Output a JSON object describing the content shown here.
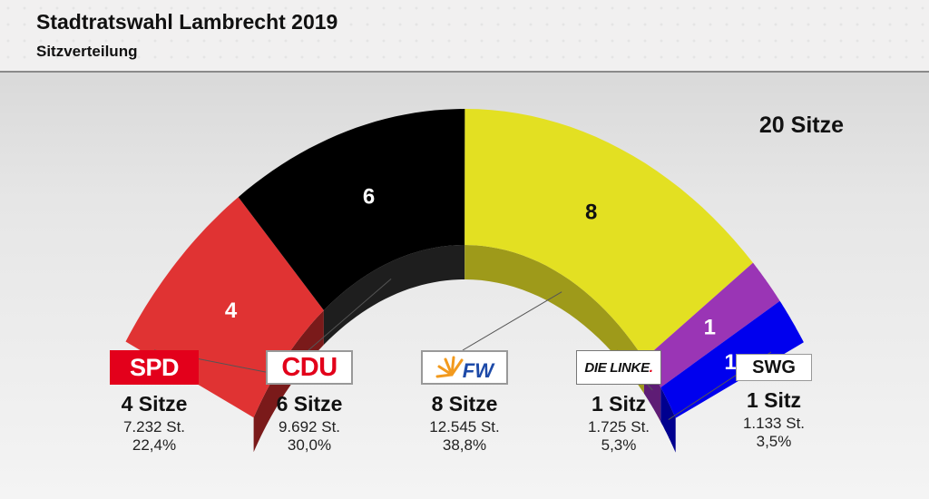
{
  "header": {
    "title": "Stadtratswahl Lambrecht 2019",
    "subtitle": "Sitzverteilung"
  },
  "total_label": "20 Sitze",
  "chart_data": {
    "type": "pie",
    "variant": "semicircle-parliament-3d",
    "title": "Stadtratswahl Lambrecht 2019",
    "subtitle": "Sitzverteilung",
    "total_seats": 20,
    "categories": [
      "SPD",
      "CDU",
      "FW",
      "DIE LINKE.",
      "SWG"
    ],
    "values": [
      4,
      6,
      8,
      1,
      1
    ],
    "segment_labels": [
      "4",
      "6",
      "8",
      "1",
      "1"
    ],
    "colors": [
      "#e03333",
      "#000000",
      "#e3e022",
      "#9a35b5",
      "#0000ee"
    ],
    "side_colors": [
      "#7a1a1a",
      "#1e1e1e",
      "#9e9a1a",
      "#5e1c75",
      "#00008f"
    ],
    "label_colors": [
      "#ffffff",
      "#ffffff",
      "#111111",
      "#ffffff",
      "#ffffff"
    ]
  },
  "parties": [
    {
      "logo": "SPD",
      "seats": "4 Sitze",
      "votes": "7.232 St.",
      "pct": "22,4%"
    },
    {
      "logo": "CDU",
      "seats": "6 Sitze",
      "votes": "9.692 St.",
      "pct": "30,0%"
    },
    {
      "logo": "FW",
      "seats": "8 Sitze",
      "votes": "12.545 St.",
      "pct": "38,8%"
    },
    {
      "logo_main": "DIE LINKE",
      "logo_dot": ".",
      "seats": "1 Sitz",
      "votes": "1.725 St.",
      "pct": "5,3%"
    },
    {
      "logo": "SWG",
      "seats": "1 Sitz",
      "votes": "1.133 St.",
      "pct": "3,5%"
    }
  ]
}
